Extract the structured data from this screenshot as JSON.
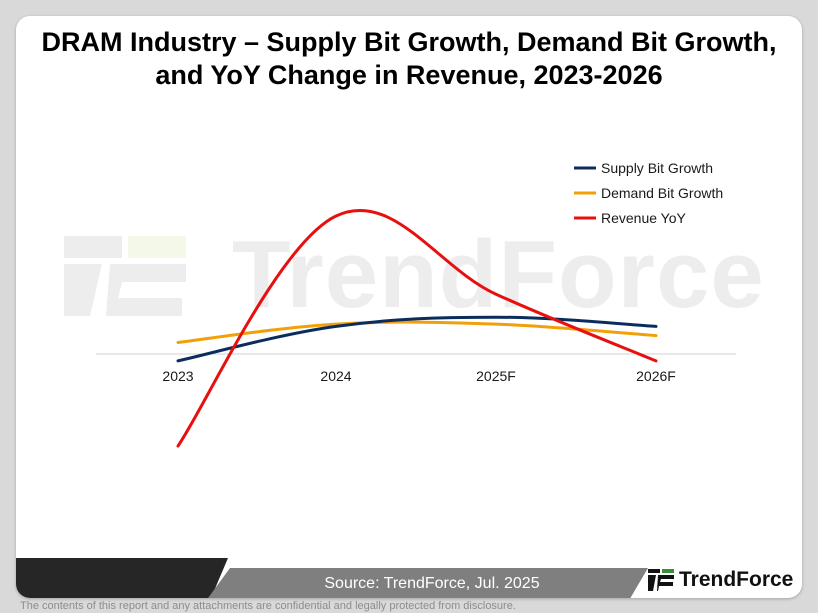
{
  "header": {
    "title_line1": "DRAM Industry – Supply Bit Growth, Demand Bit Growth,",
    "title_line2": "and YoY Change in Revenue, 2023-2026"
  },
  "watermark": {
    "text": "TrendForce"
  },
  "chart_data": {
    "type": "line",
    "categories": [
      "2023",
      "2024",
      "2025F",
      "2026F"
    ],
    "series": [
      {
        "name": "Supply Bit Growth",
        "values": [
          -3,
          12,
          16,
          12
        ],
        "color": "#0b2d5e"
      },
      {
        "name": "Demand Bit Growth",
        "values": [
          5,
          13,
          13,
          8
        ],
        "color": "#f2a007"
      },
      {
        "name": "Revenue YoY",
        "values": [
          -40,
          60,
          26,
          -3
        ],
        "color": "#e80f0f"
      }
    ],
    "ylim": [
      -80,
      80
    ],
    "grid": false,
    "legend_position": "top-right",
    "xlabel": "",
    "ylabel": "",
    "title": ""
  },
  "footer": {
    "source": "Source: TrendForce, Jul. 2025",
    "brand": "TrendForce",
    "disclaimer": "The contents of this report and any attachments are confidential and legally protected from disclosure."
  }
}
